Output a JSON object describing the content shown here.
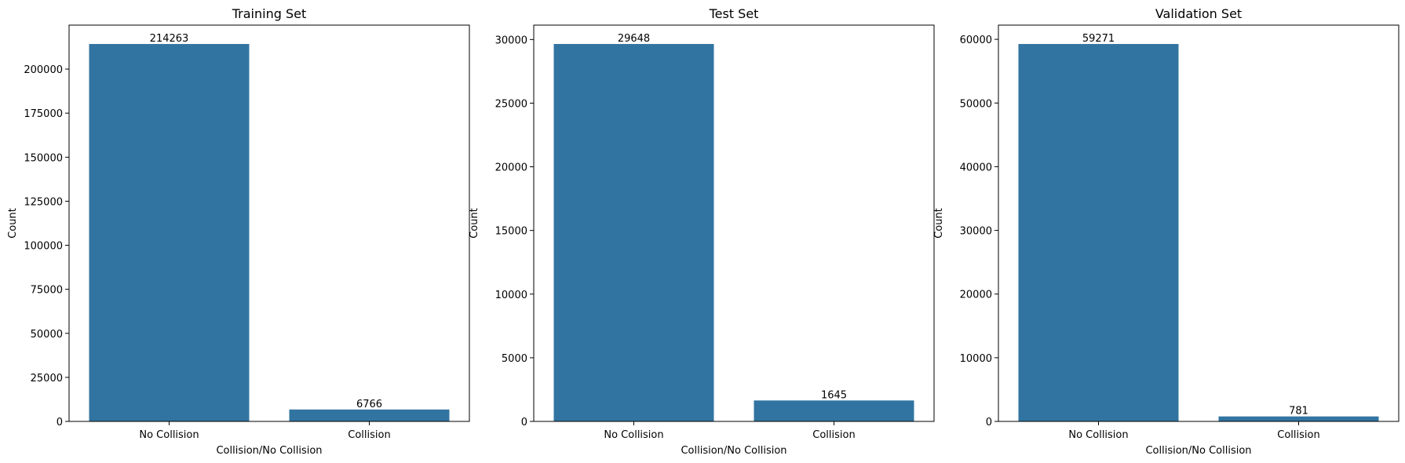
{
  "figure": {
    "bar_color": "#3274a1",
    "axes_color": "#000000",
    "background": "#ffffff"
  },
  "chart_data": [
    {
      "type": "bar",
      "title": "Training Set",
      "xlabel": "Collision/No Collision",
      "ylabel": "Count",
      "categories": [
        "No Collision",
        "Collision"
      ],
      "values": [
        214263,
        6766
      ],
      "value_labels": [
        "214263",
        "6766"
      ],
      "ylim": [
        0,
        224976
      ],
      "yticks": [
        0,
        25000,
        50000,
        75000,
        100000,
        125000,
        150000,
        175000,
        200000
      ],
      "ytick_labels": [
        "0",
        "25000",
        "50000",
        "75000",
        "100000",
        "125000",
        "150000",
        "175000",
        "200000"
      ],
      "grid": false,
      "legend": "none"
    },
    {
      "type": "bar",
      "title": "Test Set",
      "xlabel": "Collision/No Collision",
      "ylabel": "Count",
      "categories": [
        "No Collision",
        "Collision"
      ],
      "values": [
        29648,
        1645
      ],
      "value_labels": [
        "29648",
        "1645"
      ],
      "ylim": [
        0,
        31130
      ],
      "yticks": [
        0,
        5000,
        10000,
        15000,
        20000,
        25000,
        30000
      ],
      "ytick_labels": [
        "0",
        "5000",
        "10000",
        "15000",
        "20000",
        "25000",
        "30000"
      ],
      "grid": false,
      "legend": "none"
    },
    {
      "type": "bar",
      "title": "Validation Set",
      "xlabel": "Collision/No Collision",
      "ylabel": "Count",
      "categories": [
        "No Collision",
        "Collision"
      ],
      "values": [
        59271,
        781
      ],
      "value_labels": [
        "59271",
        "781"
      ],
      "ylim": [
        0,
        62235
      ],
      "yticks": [
        0,
        10000,
        20000,
        30000,
        40000,
        50000,
        60000
      ],
      "ytick_labels": [
        "0",
        "10000",
        "20000",
        "30000",
        "40000",
        "50000",
        "60000"
      ],
      "grid": false,
      "legend": "none"
    }
  ]
}
